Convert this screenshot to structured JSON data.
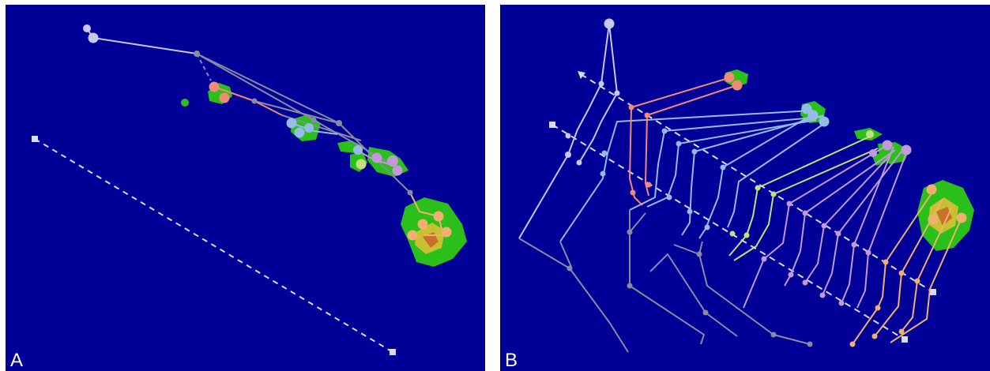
{
  "panels": [
    {
      "id": "A",
      "label": "A"
    },
    {
      "id": "B",
      "label": "B"
    }
  ],
  "colors": {
    "background": "#000099",
    "outgroup": "#c8c8ec",
    "axis": "#d8dcf4",
    "internal": "#8a8aa0",
    "kauai": "#f28a78",
    "oahu": "#94bce6",
    "maui_nui": "#c4e07e",
    "maui_lavender": "#c29ad8",
    "hawaii": "#f2b070",
    "island_green": "#2bbf1a",
    "island_core": "#c8c030",
    "island_peak": "#c8702a"
  }
}
